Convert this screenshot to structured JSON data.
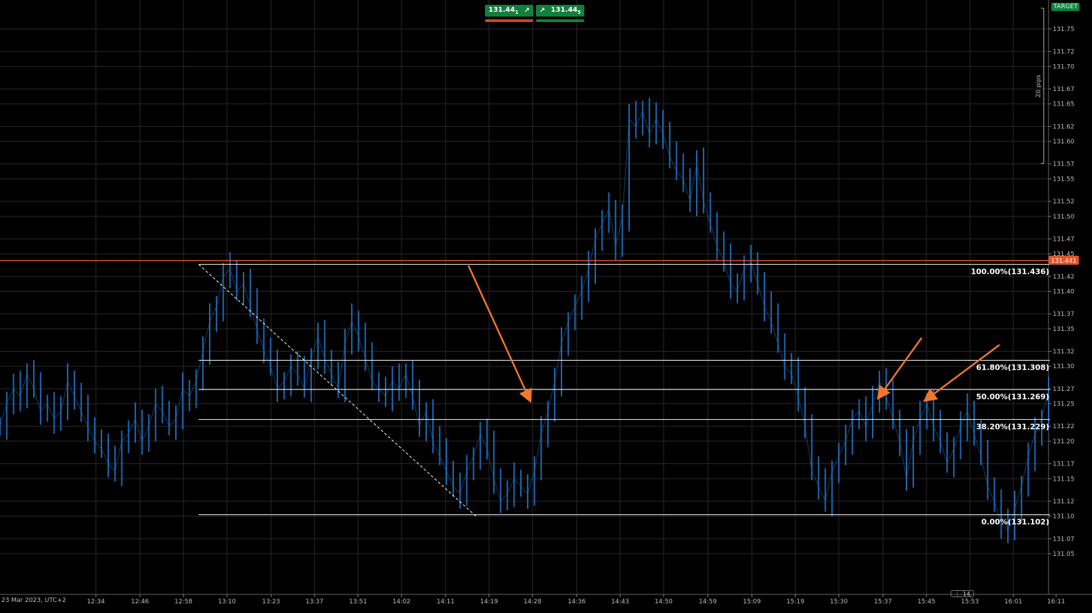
{
  "trade_panel": {
    "sell_price": "131.44",
    "sell_sub": "1",
    "buy_price": "131.44",
    "buy_sub": "5",
    "sell_bar_color": "#c8462a",
    "buy_bar_color": "#11803c"
  },
  "target_label": "TARGET",
  "current_price_label": "131.441",
  "pips_label": "20 pips",
  "date_label": "23 Mar 2023, UTC+2",
  "zoom_indicator": "14",
  "chart_data": {
    "type": "line",
    "symbol_color": "#1e6ab8",
    "y_axis": {
      "range": [
        131.03,
        131.78
      ],
      "tick_labels": [
        "131.75",
        "131.72",
        "131.70",
        "131.67",
        "131.65",
        "131.62",
        "131.60",
        "131.57",
        "131.55",
        "131.52",
        "131.50",
        "131.47",
        "131.45",
        "131.42",
        "131.40",
        "131.37",
        "131.35",
        "131.32",
        "131.30",
        "131.27",
        "131.25",
        "131.22",
        "131.20",
        "131.17",
        "131.15",
        "131.12",
        "131.10",
        "131.07",
        "131.05"
      ]
    },
    "x_axis": {
      "tick_labels": [
        "12:34",
        "12:46",
        "12:58",
        "13:10",
        "13:23",
        "13:37",
        "13:51",
        "14:02",
        "14:11",
        "14:19",
        "14:28",
        "14:36",
        "14:43",
        "14:50",
        "14:59",
        "15:09",
        "15:19",
        "15:30",
        "15:37",
        "15:45",
        "15:53",
        "16:01",
        "16:11"
      ]
    },
    "grid": true,
    "current_price": 131.441,
    "current_price_color": "#e0542b",
    "fibonacci": {
      "color": "#ffffff",
      "levels": [
        {
          "label": "100.00%(131.436)",
          "value": 131.436
        },
        {
          "label": "61.80%(131.308)",
          "value": 131.308
        },
        {
          "label": "50.00%(131.269)",
          "value": 131.269
        },
        {
          "label": "38.20%(131.229)",
          "value": 131.229
        },
        {
          "label": "0.00%(131.102)",
          "value": 131.102
        }
      ]
    },
    "price_series": [
      131.22,
      131.25,
      131.27,
      131.26,
      131.29,
      131.27,
      131.24,
      131.25,
      131.23,
      131.24,
      131.28,
      131.26,
      131.24,
      131.22,
      131.2,
      131.19,
      131.17,
      131.16,
      131.2,
      131.21,
      131.23,
      131.2,
      131.22,
      131.25,
      131.24,
      131.22,
      131.23,
      131.27,
      131.26,
      131.28,
      131.32,
      131.36,
      131.38,
      131.42,
      131.43,
      131.4,
      131.41,
      131.38,
      131.35,
      131.32,
      131.3,
      131.27,
      131.28,
      131.3,
      131.29,
      131.27,
      131.31,
      131.34,
      131.31,
      131.29,
      131.27,
      131.33,
      131.36,
      131.34,
      131.31,
      131.28,
      131.27,
      131.26,
      131.28,
      131.27,
      131.29,
      131.26,
      131.22,
      131.24,
      131.2,
      131.18,
      131.16,
      131.14,
      131.13,
      131.16,
      131.18,
      131.21,
      131.19,
      131.15,
      131.12,
      131.13,
      131.15,
      131.14,
      131.13,
      131.16,
      131.21,
      131.24,
      131.28,
      131.33,
      131.36,
      131.38,
      131.4,
      131.43,
      131.47,
      131.49,
      131.51,
      131.46,
      131.5,
      131.63,
      131.62,
      131.64,
      131.61,
      131.63,
      131.61,
      131.58,
      131.56,
      131.55,
      131.52,
      131.57,
      131.52,
      131.49,
      131.46,
      131.44,
      131.41,
      131.4,
      131.43,
      131.44,
      131.41,
      131.38,
      131.36,
      131.33,
      131.3,
      131.29,
      131.26,
      131.22,
      131.16,
      131.14,
      131.12,
      131.16,
      131.18,
      131.2,
      131.23,
      131.24,
      131.22,
      131.25,
      131.28,
      131.26,
      131.23,
      131.2,
      131.15,
      131.2,
      131.23,
      131.25,
      131.22,
      131.2,
      131.17,
      131.19,
      131.22,
      131.24,
      131.21,
      131.18,
      131.14,
      131.12,
      131.09,
      131.08,
      131.11,
      131.14,
      131.18,
      131.21,
      131.23,
      131.27
    ],
    "diagonal_trendline": {
      "from": {
        "time": "12:58",
        "price": 131.436
      },
      "to": {
        "time": "14:19",
        "price": 131.102
      },
      "style": "dashed"
    },
    "annotation_arrows": {
      "color": "#f0782a",
      "count": 3
    }
  }
}
